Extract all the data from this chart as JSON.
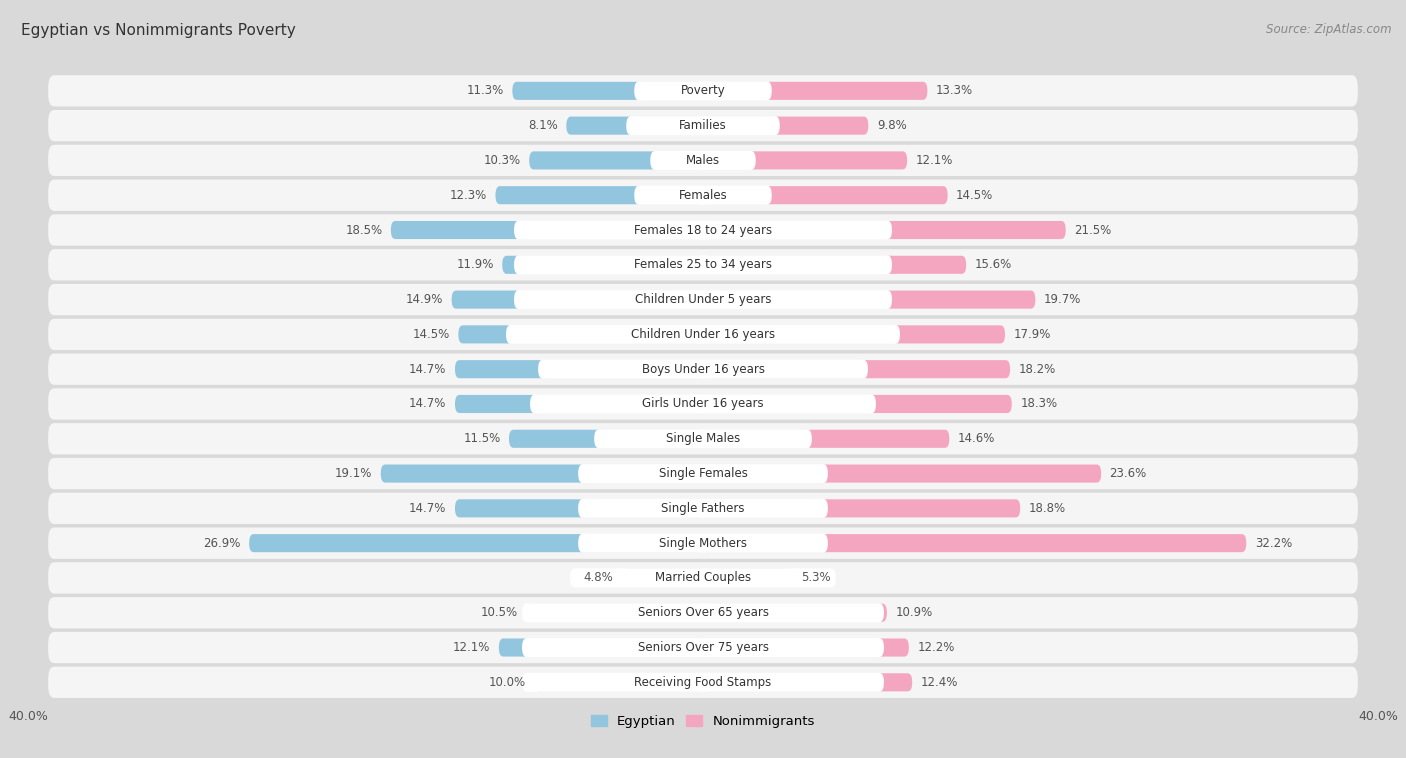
{
  "title": "Egyptian vs Nonimmigrants Poverty",
  "source": "Source: ZipAtlas.com",
  "categories": [
    "Poverty",
    "Families",
    "Males",
    "Females",
    "Females 18 to 24 years",
    "Females 25 to 34 years",
    "Children Under 5 years",
    "Children Under 16 years",
    "Boys Under 16 years",
    "Girls Under 16 years",
    "Single Males",
    "Single Females",
    "Single Fathers",
    "Single Mothers",
    "Married Couples",
    "Seniors Over 65 years",
    "Seniors Over 75 years",
    "Receiving Food Stamps"
  ],
  "egyptian": [
    11.3,
    8.1,
    10.3,
    12.3,
    18.5,
    11.9,
    14.9,
    14.5,
    14.7,
    14.7,
    11.5,
    19.1,
    14.7,
    26.9,
    4.8,
    10.5,
    12.1,
    10.0
  ],
  "nonimmigrants": [
    13.3,
    9.8,
    12.1,
    14.5,
    21.5,
    15.6,
    19.7,
    17.9,
    18.2,
    18.3,
    14.6,
    23.6,
    18.8,
    32.2,
    5.3,
    10.9,
    12.2,
    12.4
  ],
  "egyptian_color": "#92c5de",
  "nonimmigrant_color": "#f4a6c0",
  "background_color": "#d9d9d9",
  "row_color": "#f5f5f5",
  "axis_limit": 40.0,
  "bar_height": 0.52,
  "legend_labels": [
    "Egyptian",
    "Nonimmigrants"
  ],
  "title_fontsize": 11,
  "source_fontsize": 8.5,
  "label_fontsize": 8.5,
  "value_fontsize": 8.5
}
